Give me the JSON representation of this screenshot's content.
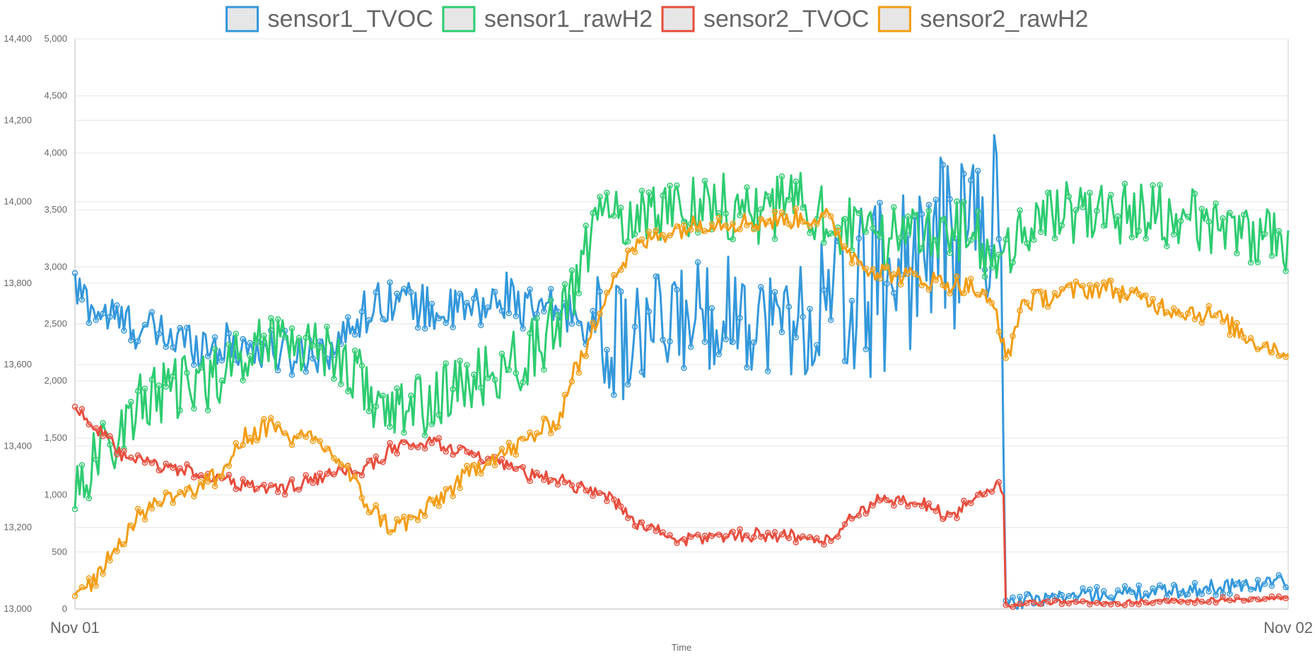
{
  "chart_data": {
    "type": "line",
    "title": "",
    "xlabel": "Time",
    "ylabel_left": "",
    "ylabel_right": "",
    "x_ticks": [
      "Nov 01",
      "Nov 02"
    ],
    "x_range": [
      0,
      1
    ],
    "y_left": {
      "range": [
        13000,
        14400
      ],
      "ticks": [
        "13,000",
        "13,200",
        "13,400",
        "13,600",
        "13,800",
        "14,000",
        "14,200",
        "14,400"
      ]
    },
    "y_right": {
      "range": [
        0,
        5000
      ],
      "ticks": [
        "0",
        "500",
        "1,000",
        "1,500",
        "2,000",
        "2,500",
        "3,000",
        "3,500",
        "4,000",
        "4,500",
        "5,000"
      ]
    },
    "grid": true,
    "legend": "top-center",
    "series": [
      {
        "name": "sensor1_TVOC",
        "axis": "right",
        "color": "#3498db",
        "anchors": [
          [
            0.0,
            2800
          ],
          [
            0.02,
            2600
          ],
          [
            0.06,
            2430
          ],
          [
            0.1,
            2330
          ],
          [
            0.14,
            2300
          ],
          [
            0.18,
            2230
          ],
          [
            0.22,
            2320
          ],
          [
            0.23,
            2550
          ],
          [
            0.26,
            2740
          ],
          [
            0.3,
            2600
          ],
          [
            0.34,
            2640
          ],
          [
            0.36,
            2790
          ],
          [
            0.37,
            2600
          ],
          [
            0.4,
            2620
          ],
          [
            0.42,
            2530
          ],
          [
            0.44,
            2350
          ],
          [
            0.46,
            2320
          ],
          [
            0.5,
            2550
          ],
          [
            0.54,
            2640
          ],
          [
            0.58,
            2500
          ],
          [
            0.61,
            2640
          ],
          [
            0.62,
            2530
          ],
          [
            0.64,
            2730
          ],
          [
            0.66,
            2820
          ],
          [
            0.68,
            3000
          ],
          [
            0.7,
            3150
          ],
          [
            0.72,
            3200
          ],
          [
            0.74,
            3380
          ],
          [
            0.765,
            3390
          ],
          [
            0.766,
            50
          ],
          [
            0.8,
            100
          ],
          [
            0.85,
            130
          ],
          [
            0.9,
            150
          ],
          [
            0.95,
            200
          ],
          [
            1.0,
            240
          ]
        ],
        "noise": 200,
        "spikes": [
          [
            0.77,
            0.77,
            250
          ],
          [
            0.82,
            0.84,
            4200
          ],
          [
            0.8,
            0.81,
            4500
          ]
        ]
      },
      {
        "name": "sensor1_rawH2",
        "axis": "left",
        "color": "#2ecc71",
        "anchors": [
          [
            0.0,
            13300
          ],
          [
            0.04,
            13450
          ],
          [
            0.06,
            13520
          ],
          [
            0.1,
            13550
          ],
          [
            0.13,
            13600
          ],
          [
            0.16,
            13670
          ],
          [
            0.2,
            13650
          ],
          [
            0.22,
            13620
          ],
          [
            0.23,
            13580
          ],
          [
            0.26,
            13470
          ],
          [
            0.3,
            13520
          ],
          [
            0.34,
            13570
          ],
          [
            0.37,
            13620
          ],
          [
            0.4,
            13700
          ],
          [
            0.41,
            13780
          ],
          [
            0.43,
            13950
          ],
          [
            0.48,
            13980
          ],
          [
            0.52,
            14000
          ],
          [
            0.56,
            13970
          ],
          [
            0.6,
            14000
          ],
          [
            0.62,
            13960
          ],
          [
            0.66,
            13900
          ],
          [
            0.7,
            13950
          ],
          [
            0.74,
            13920
          ],
          [
            0.76,
            13810
          ],
          [
            0.78,
            13950
          ],
          [
            0.84,
            13980
          ],
          [
            0.9,
            13960
          ],
          [
            0.95,
            13950
          ],
          [
            1.0,
            13880
          ]
        ],
        "noise": 80
      },
      {
        "name": "sensor2_TVOC",
        "axis": "right",
        "color": "#e74c3c",
        "anchors": [
          [
            0.0,
            1780
          ],
          [
            0.02,
            1560
          ],
          [
            0.04,
            1330
          ],
          [
            0.08,
            1230
          ],
          [
            0.1,
            1200
          ],
          [
            0.14,
            1080
          ],
          [
            0.17,
            1050
          ],
          [
            0.2,
            1150
          ],
          [
            0.24,
            1230
          ],
          [
            0.26,
            1400
          ],
          [
            0.28,
            1450
          ],
          [
            0.3,
            1450
          ],
          [
            0.32,
            1380
          ],
          [
            0.34,
            1300
          ],
          [
            0.38,
            1160
          ],
          [
            0.4,
            1130
          ],
          [
            0.42,
            1050
          ],
          [
            0.44,
            1000
          ],
          [
            0.46,
            770
          ],
          [
            0.5,
            600
          ],
          [
            0.54,
            650
          ],
          [
            0.58,
            650
          ],
          [
            0.6,
            630
          ],
          [
            0.62,
            590
          ],
          [
            0.64,
            800
          ],
          [
            0.66,
            950
          ],
          [
            0.68,
            930
          ],
          [
            0.7,
            930
          ],
          [
            0.72,
            800
          ],
          [
            0.74,
            960
          ],
          [
            0.76,
            1100
          ],
          [
            0.766,
            1000
          ],
          [
            0.767,
            30
          ],
          [
            0.8,
            60
          ],
          [
            0.85,
            50
          ],
          [
            0.9,
            70
          ],
          [
            0.95,
            80
          ],
          [
            1.0,
            90
          ]
        ],
        "noise": 60
      },
      {
        "name": "sensor2_rawH2",
        "axis": "left",
        "color": "#f39c12",
        "anchors": [
          [
            0.0,
            13020
          ],
          [
            0.02,
            13090
          ],
          [
            0.04,
            13180
          ],
          [
            0.06,
            13250
          ],
          [
            0.08,
            13280
          ],
          [
            0.1,
            13300
          ],
          [
            0.12,
            13330
          ],
          [
            0.14,
            13420
          ],
          [
            0.16,
            13450
          ],
          [
            0.18,
            13420
          ],
          [
            0.2,
            13410
          ],
          [
            0.22,
            13360
          ],
          [
            0.24,
            13260
          ],
          [
            0.26,
            13200
          ],
          [
            0.28,
            13220
          ],
          [
            0.3,
            13270
          ],
          [
            0.32,
            13320
          ],
          [
            0.34,
            13370
          ],
          [
            0.36,
            13390
          ],
          [
            0.38,
            13430
          ],
          [
            0.4,
            13470
          ],
          [
            0.41,
            13580
          ],
          [
            0.42,
            13620
          ],
          [
            0.44,
            13800
          ],
          [
            0.46,
            13880
          ],
          [
            0.48,
            13920
          ],
          [
            0.52,
            13950
          ],
          [
            0.56,
            13950
          ],
          [
            0.6,
            13960
          ],
          [
            0.62,
            13960
          ],
          [
            0.64,
            13870
          ],
          [
            0.66,
            13830
          ],
          [
            0.7,
            13810
          ],
          [
            0.74,
            13790
          ],
          [
            0.76,
            13730
          ],
          [
            0.768,
            13600
          ],
          [
            0.78,
            13750
          ],
          [
            0.82,
            13780
          ],
          [
            0.85,
            13790
          ],
          [
            0.9,
            13740
          ],
          [
            0.94,
            13720
          ],
          [
            0.97,
            13660
          ],
          [
            1.0,
            13630
          ]
        ],
        "noise": 25
      }
    ]
  }
}
